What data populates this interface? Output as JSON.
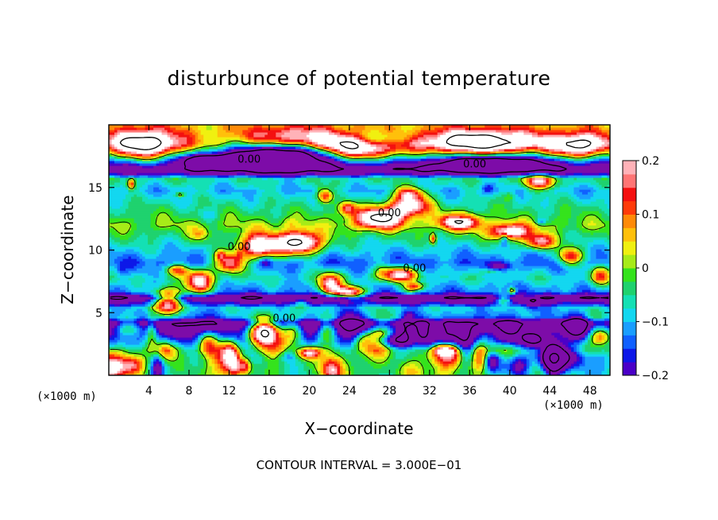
{
  "chart_data": {
    "type": "heatmap",
    "title": "disturbunce of potential temperature",
    "xlabel": "X−coordinate",
    "ylabel": "Z−coordinate",
    "x_unit_label": "(×1000 m)",
    "y_unit_label": "(×1000 m)",
    "xlim": [
      0,
      50
    ],
    "ylim": [
      0,
      20
    ],
    "x_ticks": [
      "4",
      "8",
      "12",
      "16",
      "20",
      "24",
      "28",
      "32",
      "36",
      "40",
      "44",
      "48"
    ],
    "x_tick_values": [
      4,
      8,
      12,
      16,
      20,
      24,
      28,
      32,
      36,
      40,
      44,
      48
    ],
    "y_ticks": [
      "5",
      "10",
      "15"
    ],
    "y_tick_values": [
      5,
      10,
      15
    ],
    "colorbar": {
      "range": [
        -0.2,
        0.2
      ],
      "tick_labels": [
        "0.2",
        "0.1",
        "0",
        "−0.1",
        "−0.2"
      ],
      "tick_values": [
        0.2,
        0.1,
        0,
        -0.1,
        -0.2
      ]
    },
    "contour_labels": [
      {
        "text": "0.00",
        "x": 14,
        "z": 17
      },
      {
        "text": "0.00",
        "x": 36.5,
        "z": 16.6
      },
      {
        "text": "0.00",
        "x": 28,
        "z": 12.7
      },
      {
        "text": "0.00",
        "x": 13,
        "z": 10
      },
      {
        "text": "0.00",
        "x": 30.5,
        "z": 8.3
      },
      {
        "text": "0.00",
        "x": 17.5,
        "z": 4.3
      }
    ],
    "horizontal_bands": [
      {
        "z_center": 18.5,
        "anomaly": 0.05
      },
      {
        "z_center": 16.4,
        "anomaly": -0.3
      },
      {
        "z_center": 15.7,
        "anomaly": -0.05
      },
      {
        "z_center": 14.8,
        "anomaly": -0.1
      },
      {
        "z_center": 13.5,
        "anomaly": -0.05
      },
      {
        "z_center": 12.0,
        "anomaly": 0.0
      },
      {
        "z_center": 10.3,
        "anomaly": -0.08
      },
      {
        "z_center": 9.0,
        "anomaly": -0.14
      },
      {
        "z_center": 7.8,
        "anomaly": -0.07
      },
      {
        "z_center": 6.7,
        "anomaly": -0.13
      },
      {
        "z_center": 6.2,
        "anomaly": -0.3
      },
      {
        "z_center": 5.4,
        "anomaly": -0.09
      },
      {
        "z_center": 4.7,
        "anomaly": -0.12
      },
      {
        "z_center": 4.2,
        "anomaly": -0.3
      },
      {
        "z_center": 2.0,
        "anomaly": -0.05
      }
    ],
    "contour_interval_text": "CONTOUR INTERVAL = 3.000E−01",
    "colors": {
      "below": "#7d0ca8",
      "levels": [
        "#4b00c8",
        "#0d18e8",
        "#1060ff",
        "#1a9eff",
        "#13d7f0",
        "#14e0b4",
        "#1fd26e",
        "#35e31c",
        "#a7eb18",
        "#f0f010",
        "#ffc00b",
        "#ff8a08",
        "#ff3b0a",
        "#f41010",
        "#ff7575",
        "#ffb2b8"
      ],
      "above": "#ffffff"
    }
  }
}
